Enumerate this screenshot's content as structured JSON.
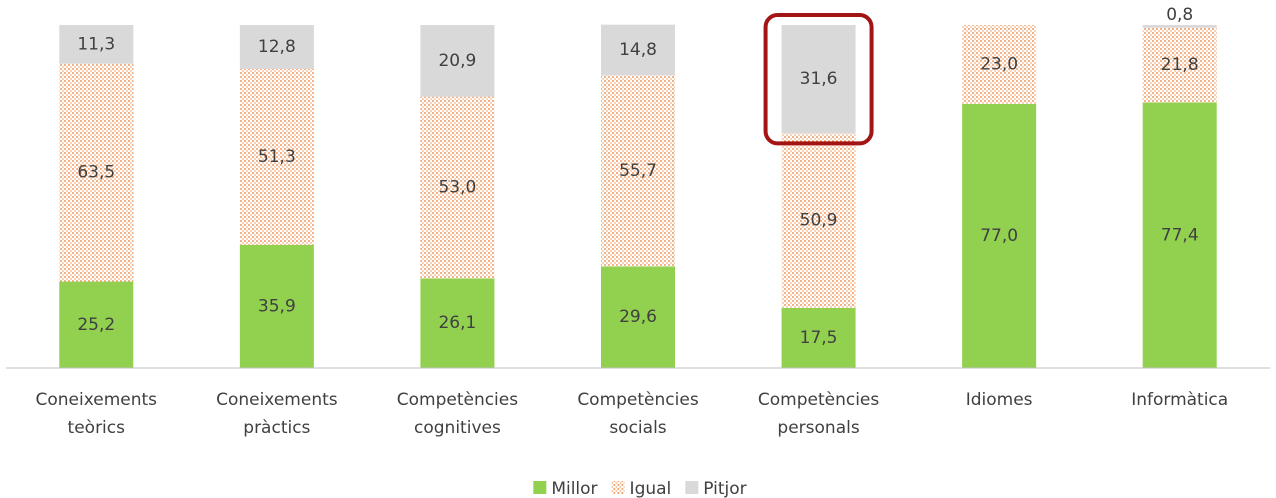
{
  "chart_data": {
    "type": "stacked_bar",
    "categories": [
      "Coneixements teòrics",
      "Coneixements pràctics",
      "Competències cognitives",
      "Competències socials",
      "Competències personals",
      "Idiomes",
      "Informàtica"
    ],
    "ylim": [
      0,
      100
    ],
    "series": [
      {
        "name": "Millor",
        "color": "#92d050",
        "values": [
          25.2,
          35.9,
          26.1,
          29.6,
          17.5,
          77.0,
          77.4
        ],
        "value_labels": [
          "25,2",
          "35,9",
          "26,1",
          "29,6",
          "17,5",
          "77,0",
          "77,4"
        ]
      },
      {
        "name": "Igual",
        "color": "#ed7d31",
        "values": [
          63.5,
          51.3,
          53.0,
          55.7,
          50.9,
          23.0,
          21.8
        ],
        "value_labels": [
          "63,5",
          "51,3",
          "53,0",
          "55,7",
          "50,9",
          "23,0",
          "21,8"
        ]
      },
      {
        "name": "Pitjor",
        "color": "#d9d9d9",
        "values": [
          11.3,
          12.8,
          20.9,
          14.8,
          31.6,
          0,
          0.8
        ],
        "value_labels": [
          "11,3",
          "12,8",
          "20,9",
          "14,8",
          "31,6",
          null,
          "0,8"
        ]
      }
    ]
  }
}
